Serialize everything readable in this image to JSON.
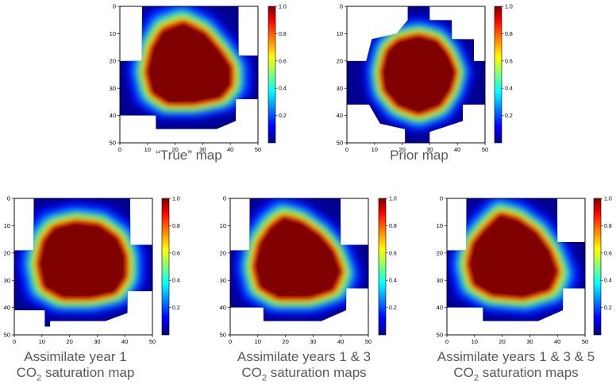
{
  "figure": {
    "panels": [
      {
        "caption_lines": [
          "“True” map"
        ]
      },
      {
        "caption_lines": [
          "Prior map"
        ]
      },
      {
        "caption_lines": [
          "Assimilate year 1",
          "CO|2| saturation map"
        ]
      },
      {
        "caption_lines": [
          "Assimilate years 1 & 3",
          "CO|2| saturation maps"
        ]
      },
      {
        "caption_lines": [
          "Assimilate years 1 & 3 & 5",
          "CO|2| saturation maps"
        ]
      }
    ]
  },
  "chart_data": [
    {
      "type": "heatmap",
      "title": "“True” map",
      "grid": false,
      "xlim": [
        0,
        50
      ],
      "ylim": [
        50,
        0
      ],
      "x_ticks": [
        0,
        10,
        20,
        30,
        40,
        50
      ],
      "y_ticks": [
        0,
        10,
        20,
        30,
        40,
        50
      ],
      "colorbar": {
        "range": [
          0,
          1
        ],
        "ticks": [
          "0.2",
          "0.4",
          "0.6",
          "0.8",
          "1.0"
        ],
        "colormap": "jet"
      },
      "saturated_region": {
        "center": [
          25,
          24
        ],
        "outline": [
          [
            15,
            8
          ],
          [
            23,
            5
          ],
          [
            31,
            9
          ],
          [
            37,
            16
          ],
          [
            41,
            22
          ],
          [
            41,
            29
          ],
          [
            37,
            34
          ],
          [
            27,
            36
          ],
          [
            17,
            36
          ],
          [
            11,
            32
          ],
          [
            9,
            24
          ],
          [
            11,
            15
          ]
        ]
      },
      "domain_extent": [
        [
          8,
          0
        ],
        [
          43,
          0
        ],
        [
          43,
          18
        ],
        [
          51,
          18
        ],
        [
          51,
          34
        ],
        [
          42,
          34
        ],
        [
          42,
          42
        ],
        [
          35,
          45
        ],
        [
          13,
          45
        ],
        [
          13,
          40
        ],
        [
          0,
          40
        ],
        [
          0,
          20
        ],
        [
          8,
          20
        ]
      ],
      "values_note": "1.0 inside plume, decaying to 0 over ~6 cells"
    },
    {
      "type": "heatmap",
      "title": "Prior map",
      "grid": false,
      "xlim": [
        0,
        50
      ],
      "ylim": [
        50,
        0
      ],
      "x_ticks": [
        0,
        10,
        20,
        30,
        40,
        50
      ],
      "y_ticks": [
        0,
        10,
        20,
        30,
        40,
        50
      ],
      "colorbar": {
        "range": [
          0,
          1
        ],
        "ticks": [
          "0.2",
          "0.4",
          "0.6",
          "0.8",
          "1.0"
        ],
        "colormap": "jet"
      },
      "saturated_region": {
        "center": [
          26,
          25
        ],
        "outline": [
          [
            18,
            12
          ],
          [
            26,
            10
          ],
          [
            33,
            12
          ],
          [
            37,
            17
          ],
          [
            40,
            24
          ],
          [
            38,
            31
          ],
          [
            34,
            37
          ],
          [
            26,
            40
          ],
          [
            18,
            37
          ],
          [
            13,
            31
          ],
          [
            12,
            24
          ],
          [
            14,
            16
          ]
        ]
      },
      "domain_extent": [
        [
          22,
          0
        ],
        [
          30,
          0
        ],
        [
          30,
          5
        ],
        [
          38,
          5
        ],
        [
          38,
          12
        ],
        [
          46,
          12
        ],
        [
          46,
          20
        ],
        [
          51,
          20
        ],
        [
          51,
          36
        ],
        [
          42,
          36
        ],
        [
          42,
          42
        ],
        [
          30,
          46
        ],
        [
          30,
          51
        ],
        [
          21,
          51
        ],
        [
          21,
          45
        ],
        [
          12,
          43
        ],
        [
          8,
          36
        ],
        [
          0,
          36
        ],
        [
          0,
          20
        ],
        [
          7,
          20
        ],
        [
          9,
          12
        ],
        [
          18,
          10
        ],
        [
          22,
          5
        ]
      ],
      "values_note": "1.0 inside plume, decaying to 0 over ~6 cells"
    },
    {
      "type": "heatmap",
      "title": "Assimilate year 1 CO2 saturation map",
      "grid": false,
      "xlim": [
        0,
        50
      ],
      "ylim": [
        50,
        0
      ],
      "x_ticks": [
        0,
        10,
        20,
        30,
        40,
        50
      ],
      "y_ticks": [
        0,
        10,
        20,
        30,
        40,
        50
      ],
      "colorbar": {
        "range": [
          0,
          1
        ],
        "ticks": [
          "0.2",
          "0.4",
          "0.6",
          "0.8",
          "1.0"
        ],
        "colormap": "jet"
      },
      "saturated_region": {
        "center": [
          25,
          24
        ],
        "outline": [
          [
            14,
            10
          ],
          [
            22,
            8
          ],
          [
            31,
            9
          ],
          [
            38,
            14
          ],
          [
            41,
            21
          ],
          [
            41,
            29
          ],
          [
            37,
            35
          ],
          [
            28,
            37
          ],
          [
            17,
            37
          ],
          [
            10,
            33
          ],
          [
            8,
            24
          ],
          [
            10,
            15
          ]
        ]
      },
      "domain_extent": [
        [
          7,
          0
        ],
        [
          42,
          0
        ],
        [
          42,
          17
        ],
        [
          51,
          17
        ],
        [
          51,
          34
        ],
        [
          41,
          34
        ],
        [
          41,
          42
        ],
        [
          33,
          45
        ],
        [
          13,
          45
        ],
        [
          13,
          47
        ],
        [
          11,
          47
        ],
        [
          11,
          41
        ],
        [
          0,
          41
        ],
        [
          0,
          19
        ],
        [
          7,
          19
        ]
      ],
      "values_note": "1.0 inside plume, decaying to 0 over ~6 cells"
    },
    {
      "type": "heatmap",
      "title": "Assimilate years 1 & 3 CO2 saturation maps",
      "grid": false,
      "xlim": [
        0,
        50
      ],
      "ylim": [
        50,
        0
      ],
      "x_ticks": [
        0,
        10,
        20,
        30,
        40,
        50
      ],
      "y_ticks": [
        0,
        10,
        20,
        30,
        40,
        50
      ],
      "colorbar": {
        "range": [
          0,
          1
        ],
        "ticks": [
          "0.2",
          "0.4",
          "0.6",
          "0.8",
          "1.0"
        ],
        "colormap": "jet"
      },
      "saturated_region": {
        "center": [
          24,
          24
        ],
        "outline": [
          [
            14,
            10
          ],
          [
            19,
            6
          ],
          [
            26,
            8
          ],
          [
            33,
            13
          ],
          [
            38,
            19
          ],
          [
            41,
            27
          ],
          [
            38,
            34
          ],
          [
            29,
            37
          ],
          [
            17,
            37
          ],
          [
            10,
            33
          ],
          [
            8,
            25
          ],
          [
            10,
            16
          ]
        ]
      },
      "domain_extent": [
        [
          7,
          0
        ],
        [
          40,
          0
        ],
        [
          40,
          17
        ],
        [
          51,
          17
        ],
        [
          51,
          33
        ],
        [
          42,
          33
        ],
        [
          42,
          41
        ],
        [
          33,
          45
        ],
        [
          12,
          45
        ],
        [
          12,
          40
        ],
        [
          0,
          40
        ],
        [
          0,
          19
        ],
        [
          7,
          19
        ]
      ],
      "values_note": "1.0 inside plume, decaying to 0 over ~6 cells"
    },
    {
      "type": "heatmap",
      "title": "Assimilate years 1 & 3 & 5 CO2 saturation maps",
      "grid": false,
      "xlim": [
        0,
        50
      ],
      "ylim": [
        50,
        0
      ],
      "x_ticks": [
        0,
        10,
        20,
        30,
        40,
        50
      ],
      "y_ticks": [
        0,
        10,
        20,
        30,
        40,
        50
      ],
      "colorbar": {
        "range": [
          0,
          1
        ],
        "ticks": [
          "0.2",
          "0.4",
          "0.6",
          "0.8",
          "1.0"
        ],
        "colormap": "jet"
      },
      "saturated_region": {
        "center": [
          23,
          23
        ],
        "outline": [
          [
            13,
            11
          ],
          [
            19,
            5
          ],
          [
            26,
            7
          ],
          [
            33,
            12
          ],
          [
            38,
            19
          ],
          [
            41,
            27
          ],
          [
            38,
            34
          ],
          [
            28,
            37
          ],
          [
            16,
            36
          ],
          [
            9,
            32
          ],
          [
            7,
            24
          ],
          [
            9,
            16
          ]
        ]
      },
      "domain_extent": [
        [
          7,
          0
        ],
        [
          40,
          0
        ],
        [
          40,
          16
        ],
        [
          51,
          16
        ],
        [
          51,
          33
        ],
        [
          42,
          33
        ],
        [
          42,
          41
        ],
        [
          33,
          45
        ],
        [
          13,
          45
        ],
        [
          13,
          40
        ],
        [
          0,
          40
        ],
        [
          0,
          19
        ],
        [
          7,
          19
        ]
      ],
      "values_note": "1.0 inside plume, decaying to 0 over ~6 cells"
    }
  ]
}
